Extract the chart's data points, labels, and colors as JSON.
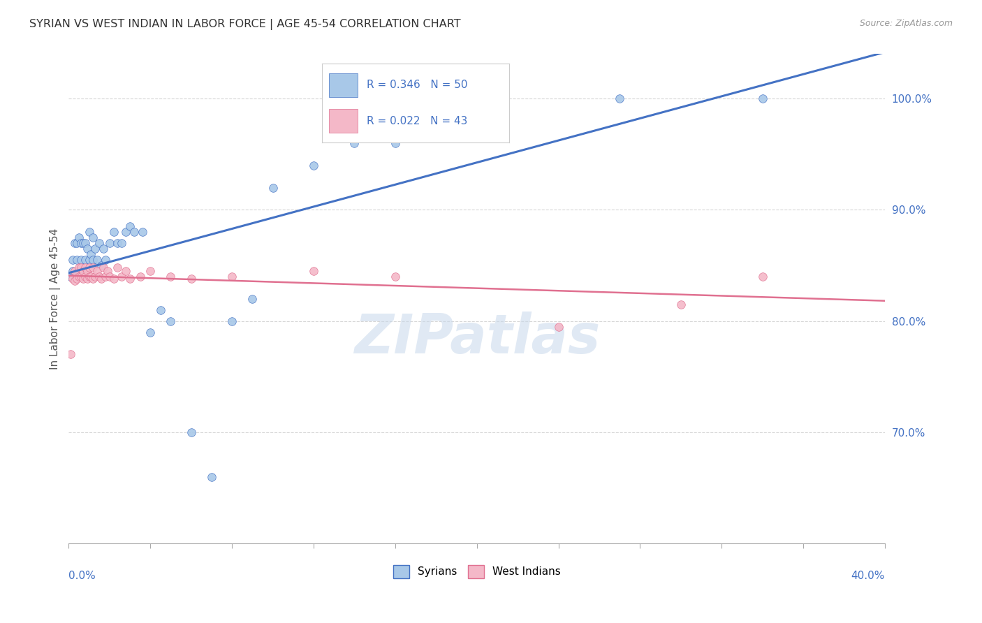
{
  "title": "SYRIAN VS WEST INDIAN IN LABOR FORCE | AGE 45-54 CORRELATION CHART",
  "source": "Source: ZipAtlas.com",
  "ylabel": "In Labor Force | Age 45-54",
  "syrian_color": "#a8c8e8",
  "westindian_color": "#f4b8c8",
  "syrian_line_color": "#4472c4",
  "westindian_line_color": "#e07090",
  "axis_color": "#4472c4",
  "watermark": "ZIPatlas",
  "syrian_x": [
    0.001,
    0.002,
    0.002,
    0.003,
    0.003,
    0.004,
    0.004,
    0.005,
    0.005,
    0.006,
    0.006,
    0.007,
    0.007,
    0.008,
    0.008,
    0.009,
    0.01,
    0.01,
    0.011,
    0.012,
    0.012,
    0.013,
    0.014,
    0.015,
    0.016,
    0.017,
    0.018,
    0.02,
    0.022,
    0.024,
    0.026,
    0.028,
    0.03,
    0.032,
    0.036,
    0.04,
    0.045,
    0.05,
    0.06,
    0.07,
    0.08,
    0.09,
    0.1,
    0.12,
    0.14,
    0.16,
    0.18,
    0.2,
    0.27,
    0.34
  ],
  "syrian_y": [
    0.84,
    0.845,
    0.855,
    0.84,
    0.87,
    0.855,
    0.87,
    0.845,
    0.875,
    0.855,
    0.87,
    0.84,
    0.87,
    0.855,
    0.87,
    0.865,
    0.855,
    0.88,
    0.86,
    0.855,
    0.875,
    0.865,
    0.855,
    0.87,
    0.85,
    0.865,
    0.855,
    0.87,
    0.88,
    0.87,
    0.87,
    0.88,
    0.885,
    0.88,
    0.88,
    0.79,
    0.81,
    0.8,
    0.7,
    0.66,
    0.8,
    0.82,
    0.92,
    0.94,
    0.96,
    0.96,
    0.97,
    1.0,
    1.0,
    1.0
  ],
  "westindian_x": [
    0.001,
    0.002,
    0.003,
    0.003,
    0.004,
    0.005,
    0.005,
    0.006,
    0.006,
    0.007,
    0.007,
    0.008,
    0.008,
    0.009,
    0.009,
    0.01,
    0.01,
    0.011,
    0.012,
    0.012,
    0.013,
    0.014,
    0.015,
    0.016,
    0.017,
    0.018,
    0.019,
    0.02,
    0.022,
    0.024,
    0.026,
    0.028,
    0.03,
    0.035,
    0.04,
    0.05,
    0.06,
    0.08,
    0.12,
    0.16,
    0.24,
    0.3,
    0.34
  ],
  "westindian_y": [
    0.77,
    0.838,
    0.836,
    0.845,
    0.838,
    0.84,
    0.848,
    0.84,
    0.848,
    0.838,
    0.845,
    0.84,
    0.848,
    0.838,
    0.845,
    0.84,
    0.848,
    0.84,
    0.838,
    0.848,
    0.84,
    0.845,
    0.84,
    0.838,
    0.848,
    0.84,
    0.845,
    0.84,
    0.838,
    0.848,
    0.84,
    0.845,
    0.838,
    0.84,
    0.845,
    0.84,
    0.838,
    0.84,
    0.845,
    0.84,
    0.795,
    0.815,
    0.84
  ],
  "xlim": [
    0.0,
    0.4
  ],
  "ylim": [
    0.6,
    1.04
  ],
  "yticks": [
    1.0,
    0.9,
    0.8,
    0.7
  ],
  "ytick_labels": [
    "100.0%",
    "90.0%",
    "80.0%",
    "70.0%"
  ],
  "xticks": [
    0.0,
    0.04,
    0.08,
    0.12,
    0.16,
    0.2,
    0.24,
    0.28,
    0.32,
    0.36,
    0.4
  ]
}
